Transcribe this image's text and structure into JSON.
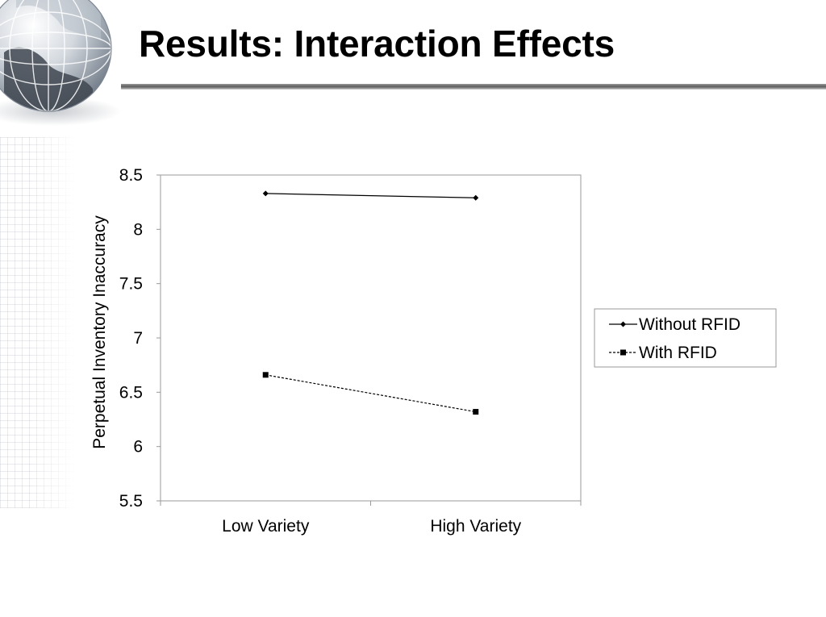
{
  "slide": {
    "title": "Results: Interaction Effects"
  },
  "chart_data": {
    "type": "line",
    "title": "",
    "xlabel": "",
    "ylabel": "Perpetual Inventory Inaccuracy",
    "categories": [
      "Low Variety",
      "High Variety"
    ],
    "ylim": [
      5.5,
      8.5
    ],
    "yticks": [
      5.5,
      6,
      6.5,
      7,
      7.5,
      8,
      8.5
    ],
    "ytick_labels": [
      "5.5",
      "6",
      "6.5",
      "7",
      "7.5",
      "8",
      "8.5"
    ],
    "grid": false,
    "legend_position": "right",
    "series": [
      {
        "name": "Without RFID",
        "values": [
          8.33,
          8.29
        ],
        "marker": "diamond",
        "line": "solid",
        "color": "#000000"
      },
      {
        "name": "With RFID",
        "values": [
          6.66,
          6.32
        ],
        "marker": "square",
        "line": "dashed",
        "color": "#000000"
      }
    ]
  },
  "colors": {
    "plot_border": "#9a9a9a",
    "series_color": "#000000",
    "title_rule": "#5e5e5e"
  },
  "icons": {
    "decoration": "globe-icon"
  }
}
